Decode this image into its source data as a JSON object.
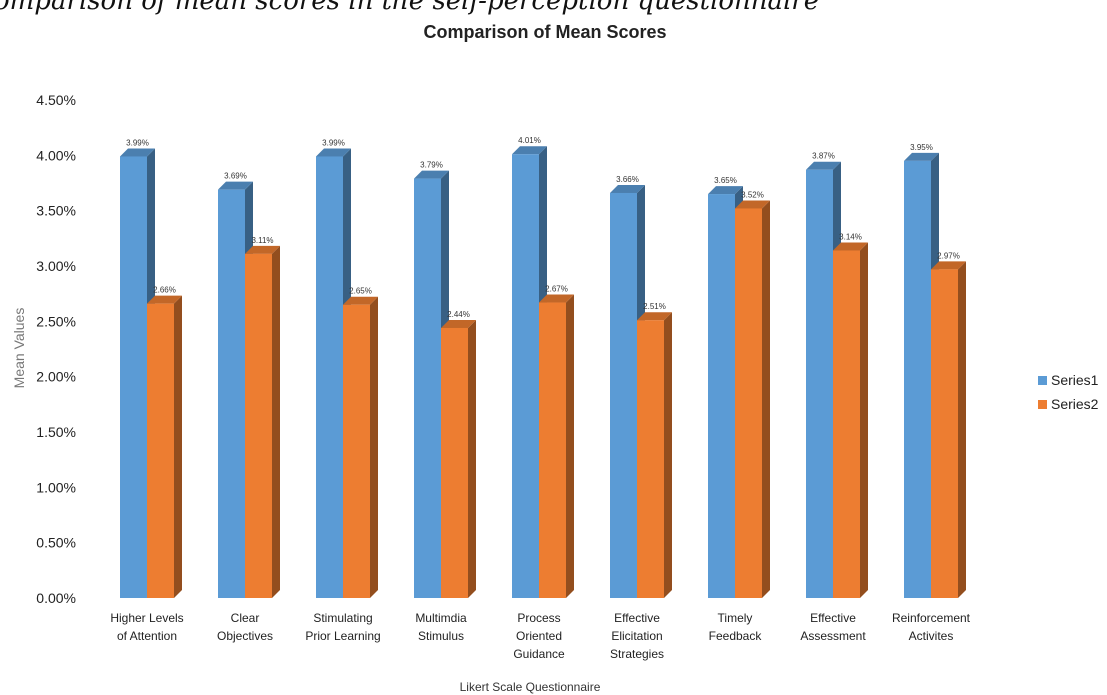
{
  "caption": "omparison of mean scores in the self-perception questionnaire",
  "chart_data": {
    "type": "bar",
    "title": "Comparison of Mean Scores",
    "xlabel": "Likert Scale Questionnaire",
    "ylabel": "Mean Values",
    "ylim": [
      0,
      4.5
    ],
    "yticks": [
      "0.00%",
      "0.50%",
      "1.00%",
      "1.50%",
      "2.00%",
      "2.50%",
      "3.00%",
      "3.50%",
      "4.00%",
      "4.50%"
    ],
    "categories": [
      [
        "Higher Levels",
        "of Attention"
      ],
      [
        "Clear",
        "Objectives"
      ],
      [
        "Stimulating",
        "Prior Learning"
      ],
      [
        "Multimdia",
        "Stimulus"
      ],
      [
        "Process",
        "Oriented",
        "Guidance"
      ],
      [
        "Effective",
        "Elicitation",
        "Strategies"
      ],
      [
        "Timely",
        "Feedback"
      ],
      [
        "Effective",
        "Assessment"
      ],
      [
        "Reinforcement",
        "Activites"
      ]
    ],
    "series": [
      {
        "name": "Series1",
        "color": "#5B9BD5",
        "values": [
          3.99,
          3.69,
          3.99,
          3.79,
          4.01,
          3.66,
          3.65,
          3.87,
          3.95
        ],
        "labels": [
          "3.99%",
          "3.69%",
          "3.99%",
          "3.79%",
          "4.01%",
          "3.66%",
          "3.65%",
          "3.87%",
          "3.95%"
        ]
      },
      {
        "name": "Series2",
        "color": "#ED7D31",
        "values": [
          2.66,
          3.11,
          2.65,
          2.44,
          2.67,
          2.51,
          3.52,
          3.14,
          2.97
        ],
        "labels": [
          "2.66%",
          "3.11%",
          "2.65%",
          "2.44%",
          "2.67%",
          "2.51%",
          "3.52%",
          "3.14%",
          "2.97%"
        ]
      }
    ],
    "legend": "right",
    "grid": false,
    "style": "3d-clustered-column"
  }
}
